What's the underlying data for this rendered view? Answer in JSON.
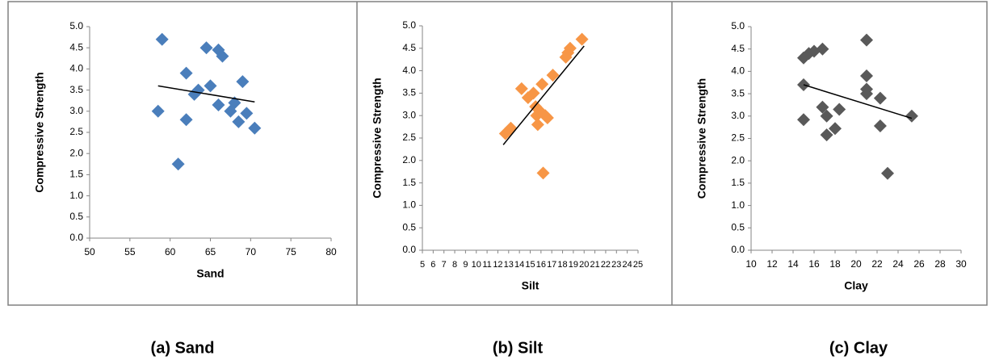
{
  "chart_data": [
    {
      "type": "scatter",
      "caption": "(a) Sand",
      "x_label": "Sand",
      "y_label": "Compressive Strength",
      "color": "#4a7ebb",
      "x": [
        59,
        58.5,
        61,
        62,
        62,
        63,
        63.5,
        64.5,
        65,
        66,
        66.5,
        66,
        67.5,
        68,
        68.5,
        69,
        69.5,
        70.5
      ],
      "y": [
        4.7,
        3.0,
        1.75,
        3.9,
        2.8,
        3.4,
        3.5,
        4.5,
        3.6,
        4.45,
        4.3,
        3.15,
        3.0,
        3.2,
        2.75,
        3.7,
        2.95,
        2.6
      ],
      "trendline": {
        "x": [
          58.5,
          70.5
        ],
        "y": [
          3.6,
          3.22
        ],
        "color": "#000000"
      },
      "xlim": [
        50,
        80
      ],
      "xticks": [
        50,
        55,
        60,
        65,
        70,
        75,
        80
      ],
      "ylim": [
        0,
        5
      ],
      "yticks": [
        {
          "value": 0,
          "label": "0.0"
        },
        {
          "value": 0.5,
          "label": "0.5"
        },
        {
          "value": 1,
          "label": "1.0"
        },
        {
          "value": 1.5,
          "label": "1.5"
        },
        {
          "value": 2,
          "label": "2.0"
        },
        {
          "value": 2.5,
          "label": "2.5"
        },
        {
          "value": 3,
          "label": "3.0"
        },
        {
          "value": 3.5,
          "label": "3.5"
        },
        {
          "value": 4,
          "label": "4.0"
        },
        {
          "value": 4.5,
          "label": "4.5"
        },
        {
          "value": 5,
          "label": "5.0"
        }
      ]
    },
    {
      "type": "scatter",
      "caption": "(b) Silt",
      "x_label": "Silt",
      "y_label": "Compressive Strength",
      "color": "#f79646",
      "x": [
        12.7,
        13.2,
        14.2,
        14.8,
        15.3,
        15.5,
        15.6,
        15.7,
        15.9,
        16.1,
        16.2,
        16.4,
        16.6,
        17.1,
        18.3,
        18.5,
        18.7,
        19.8
      ],
      "y": [
        2.6,
        2.72,
        3.6,
        3.4,
        3.5,
        3.2,
        3.0,
        2.8,
        3.1,
        3.7,
        1.72,
        3.0,
        2.95,
        3.9,
        4.3,
        4.4,
        4.5,
        4.7
      ],
      "trendline": {
        "x": [
          12.5,
          20
        ],
        "y": [
          2.35,
          4.55
        ],
        "color": "#000000"
      },
      "xlim": [
        5,
        25
      ],
      "xticks": [
        5,
        6,
        7,
        8,
        9,
        10,
        11,
        12,
        13,
        14,
        15,
        16,
        17,
        18,
        19,
        20,
        21,
        22,
        23,
        24,
        25
      ],
      "ylim": [
        0,
        5
      ],
      "yticks": [
        {
          "value": 0,
          "label": "0.0"
        },
        {
          "value": 0.5,
          "label": "0.5"
        },
        {
          "value": 1,
          "label": "1.0"
        },
        {
          "value": 1.5,
          "label": "1.5"
        },
        {
          "value": 2,
          "label": "2.0"
        },
        {
          "value": 2.5,
          "label": "2.5"
        },
        {
          "value": 3,
          "label": "3.0"
        },
        {
          "value": 3.5,
          "label": "3.5"
        },
        {
          "value": 4,
          "label": "4.0"
        },
        {
          "value": 4.5,
          "label": "4.5"
        },
        {
          "value": 5,
          "label": "5.0"
        }
      ]
    },
    {
      "type": "scatter",
      "caption": "(c) Clay",
      "x_label": "Clay",
      "y_label": "Compressive Strength",
      "color": "#595959",
      "x": [
        15,
        15.5,
        16,
        16.8,
        15,
        15,
        16.8,
        17.2,
        17.2,
        18,
        18.4,
        21,
        21,
        21,
        21,
        22.3,
        22.3,
        23,
        25.3
      ],
      "y": [
        4.3,
        4.4,
        4.45,
        4.5,
        3.7,
        2.92,
        3.2,
        3.0,
        2.58,
        2.72,
        3.15,
        4.7,
        3.9,
        3.6,
        3.5,
        3.4,
        2.78,
        1.72,
        3.0
      ],
      "trendline": {
        "x": [
          15,
          25.3
        ],
        "y": [
          3.7,
          2.95
        ],
        "color": "#000000"
      },
      "xlim": [
        10,
        30
      ],
      "xticks": [
        10,
        12,
        14,
        16,
        18,
        20,
        22,
        24,
        26,
        28,
        30
      ],
      "ylim": [
        0,
        5
      ],
      "yticks": [
        {
          "value": 0,
          "label": "0.0"
        },
        {
          "value": 0.5,
          "label": "0.5"
        },
        {
          "value": 1,
          "label": "1.0"
        },
        {
          "value": 1.5,
          "label": "1.5"
        },
        {
          "value": 2,
          "label": "2.0"
        },
        {
          "value": 2.5,
          "label": "2.5"
        },
        {
          "value": 3,
          "label": "3.0"
        },
        {
          "value": 3.5,
          "label": "3.5"
        },
        {
          "value": 4,
          "label": "4.0"
        },
        {
          "value": 4.5,
          "label": "4.5"
        },
        {
          "value": 5,
          "label": "5.0"
        }
      ]
    }
  ]
}
